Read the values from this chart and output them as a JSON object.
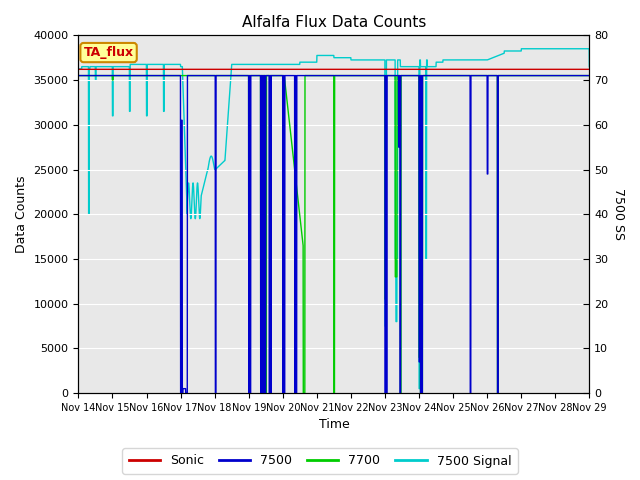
{
  "title": "Alfalfa Flux Data Counts",
  "xlabel": "Time",
  "ylabel_left": "Data Counts",
  "ylabel_right": "7500 SS",
  "ylim_left": [
    0,
    40000
  ],
  "ylim_right": [
    0,
    80
  ],
  "x_tick_labels": [
    "Nov 14",
    "Nov 15",
    "Nov 16",
    "Nov 17",
    "Nov 18",
    "Nov 19",
    "Nov 20",
    "Nov 21",
    "Nov 22",
    "Nov 23",
    "Nov 24",
    "Nov 25",
    "Nov 26",
    "Nov 27",
    "Nov 28",
    "Nov 29"
  ],
  "annotation_text": "TA_flux",
  "annotation_color": "#cc0000",
  "annotation_bg": "#ffff99",
  "annotation_border": "#cc8800",
  "bg_color": "#e8e8e8",
  "line_colors": {
    "Sonic": "#cc0000",
    "7500": "#0000cc",
    "7700": "#00cc00",
    "7500 Signal": "#00cccc"
  }
}
